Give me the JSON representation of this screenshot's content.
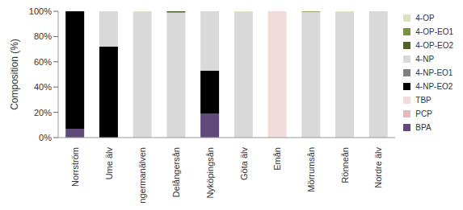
{
  "chart_data": {
    "type": "bar",
    "stacked": true,
    "y_label": "Composition (%)",
    "categories": [
      "Norrström",
      "Ume älv",
      "Ångermanälven",
      "Delångersån",
      "Nyköpingsån",
      "Göta älv",
      "Emån",
      "Mörrumsån",
      "Rönneån",
      "Nordre älv"
    ],
    "ylim": [
      0,
      100
    ],
    "yticks": [
      {
        "value": 0,
        "label": "0%"
      },
      {
        "value": 20,
        "label": "20%"
      },
      {
        "value": 40,
        "label": "40%"
      },
      {
        "value": 60,
        "label": "60%"
      },
      {
        "value": 80,
        "label": "80%"
      },
      {
        "value": 100,
        "label": "100%"
      }
    ],
    "grid": false,
    "legend": "right",
    "series": [
      {
        "name": "BPA",
        "color": "#604a7b",
        "values": [
          7,
          0,
          0,
          0,
          19,
          0,
          0,
          0,
          0,
          0
        ]
      },
      {
        "name": "PCP",
        "color": "#e6b9b8",
        "values": [
          0,
          0,
          0,
          0,
          0,
          0,
          0,
          0,
          0,
          0
        ]
      },
      {
        "name": "TBP",
        "color": "#f2dcdb",
        "values": [
          0,
          0,
          0,
          0,
          0,
          0,
          100,
          0,
          0,
          0
        ]
      },
      {
        "name": "4-NP-EO2",
        "color": "#000000",
        "values": [
          93,
          72,
          0,
          0,
          34,
          0,
          0,
          0,
          0,
          0
        ]
      },
      {
        "name": "4-NP-EO1",
        "color": "#7f7f7f",
        "values": [
          0,
          0,
          0,
          0,
          0,
          0,
          0,
          0,
          0,
          0
        ]
      },
      {
        "name": "4-NP",
        "color": "#d9d9d9",
        "values": [
          0,
          28,
          99.5,
          99,
          47,
          99.5,
          0,
          99.5,
          99.5,
          100
        ]
      },
      {
        "name": "4-OP-EO2",
        "color": "#4f6228",
        "values": [
          0,
          0,
          0,
          1,
          0,
          0,
          0,
          0,
          0,
          0
        ]
      },
      {
        "name": "4-OP-EO1",
        "color": "#77933c",
        "values": [
          0,
          0,
          0,
          0,
          0,
          0,
          0,
          0.5,
          0,
          0
        ]
      },
      {
        "name": "4-OP",
        "color": "#d7e4bd",
        "values": [
          0,
          0,
          0.5,
          0,
          0,
          0.5,
          0,
          0,
          0.5,
          0
        ]
      }
    ]
  }
}
